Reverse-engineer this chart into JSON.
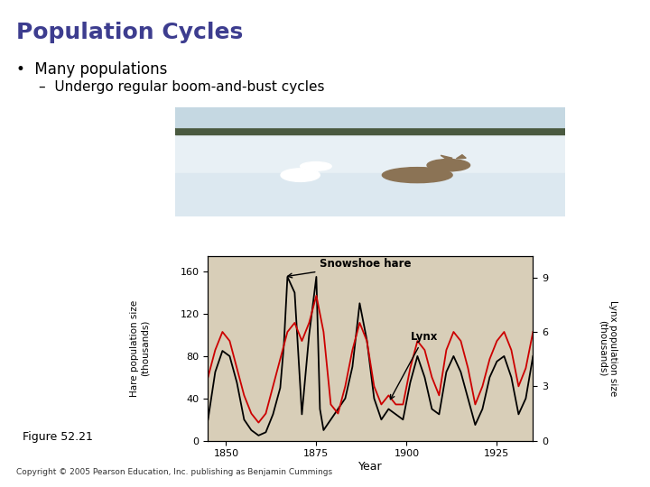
{
  "title": "Population Cycles",
  "title_color": "#3d3d8f",
  "teal_line_color": "#008b8b",
  "bullet_text": "Many populations",
  "sub_bullet_text": "Undergo regular boom-and-bust cycles",
  "slide_bg": "#ffffff",
  "panel_bg": "#6dbfb8",
  "chart_plot_bg": "#d8ceb8",
  "hare_color": "#000000",
  "lynx_color": "#cc0000",
  "xlabel": "Year",
  "ylabel_left": "Hare population size\n(thousands)",
  "ylabel_right": "Lynx population size\n(thousands)",
  "annotation_hare": "Snowshoe hare",
  "annotation_lynx": "Lynx",
  "yticks_left": [
    0,
    40,
    80,
    120,
    160
  ],
  "yticks_right": [
    0,
    3,
    6,
    9
  ],
  "xticks": [
    1850,
    1875,
    1900,
    1925
  ],
  "xlim": [
    1845,
    1935
  ],
  "ylim_left": [
    0,
    175
  ],
  "ylim_right": [
    0,
    10.2
  ],
  "copyright_text": "Copyright © 2005 Pearson Education, Inc. publishing as Benjamin Cummings",
  "figure_label": "Figure 52.21",
  "hare_years": [
    1845,
    1847,
    1849,
    1851,
    1853,
    1855,
    1857,
    1859,
    1861,
    1863,
    1865,
    1866,
    1867,
    1869,
    1871,
    1873,
    1875,
    1876,
    1877,
    1879,
    1881,
    1883,
    1885,
    1887,
    1889,
    1891,
    1893,
    1895,
    1897,
    1899,
    1901,
    1903,
    1905,
    1907,
    1909,
    1911,
    1913,
    1915,
    1917,
    1919,
    1921,
    1923,
    1925,
    1927,
    1929,
    1931,
    1933,
    1935
  ],
  "hare_values": [
    20,
    65,
    85,
    80,
    55,
    20,
    10,
    5,
    8,
    25,
    50,
    90,
    155,
    140,
    25,
    100,
    155,
    30,
    10,
    20,
    30,
    40,
    70,
    130,
    95,
    40,
    20,
    30,
    25,
    20,
    55,
    80,
    60,
    30,
    25,
    65,
    80,
    65,
    40,
    15,
    30,
    60,
    75,
    80,
    60,
    25,
    40,
    80
  ],
  "lynx_years": [
    1845,
    1847,
    1849,
    1851,
    1853,
    1855,
    1857,
    1859,
    1861,
    1863,
    1865,
    1867,
    1869,
    1871,
    1873,
    1875,
    1877,
    1879,
    1881,
    1883,
    1885,
    1887,
    1889,
    1891,
    1893,
    1895,
    1897,
    1899,
    1901,
    1903,
    1905,
    1907,
    1909,
    1911,
    1913,
    1915,
    1917,
    1919,
    1921,
    1923,
    1925,
    1927,
    1929,
    1931,
    1933,
    1935
  ],
  "lynx_values": [
    3.5,
    5,
    6,
    5.5,
    4,
    2.5,
    1.5,
    1,
    1.5,
    3,
    4.5,
    6,
    6.5,
    5.5,
    6.5,
    8,
    6,
    2,
    1.5,
    3,
    5,
    6.5,
    5.5,
    3,
    2,
    2.5,
    2,
    2,
    4,
    5.5,
    5,
    3.5,
    2.5,
    5,
    6,
    5.5,
    4,
    2,
    3,
    4.5,
    5.5,
    6,
    5,
    3,
    4,
    6
  ]
}
